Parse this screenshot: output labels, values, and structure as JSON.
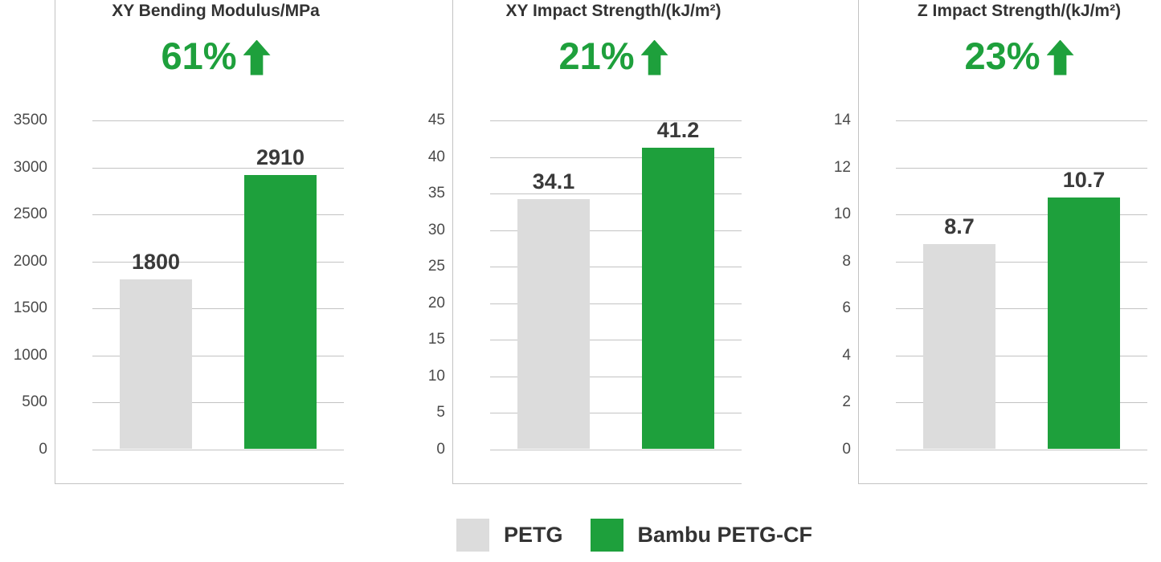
{
  "colors": {
    "green": "#1ea03c",
    "gray": "#dcdcdc",
    "grid": "#c3c3c3",
    "text_dark": "#333333"
  },
  "legend": {
    "position": "bottom-center",
    "items": [
      {
        "label": "PETG",
        "color": "#dcdcdc"
      },
      {
        "label": "Bambu PETG-CF",
        "color": "#1ea03c"
      }
    ]
  },
  "chart_data": [
    {
      "type": "bar",
      "title": "XY Bending Modulus/MPa",
      "improvement_label": "61%",
      "improvement_direction": "up",
      "categories": [
        "PETG",
        "Bambu PETG-CF"
      ],
      "values": [
        1800,
        2910
      ],
      "value_labels": [
        "1800",
        "2910"
      ],
      "series_colors": [
        "#dcdcdc",
        "#1ea03c"
      ],
      "ylim": [
        0,
        3500
      ],
      "yticks": [
        0,
        500,
        1000,
        1500,
        2000,
        2500,
        3000,
        3500
      ],
      "grid": true
    },
    {
      "type": "bar",
      "title": "XY Impact Strength/(kJ/m²)",
      "improvement_label": "21%",
      "improvement_direction": "up",
      "categories": [
        "PETG",
        "Bambu PETG-CF"
      ],
      "values": [
        34.1,
        41.2
      ],
      "value_labels": [
        "34.1",
        "41.2"
      ],
      "series_colors": [
        "#dcdcdc",
        "#1ea03c"
      ],
      "ylim": [
        0,
        45
      ],
      "yticks": [
        0,
        5,
        10,
        15,
        20,
        25,
        30,
        35,
        40,
        45
      ],
      "grid": true
    },
    {
      "type": "bar",
      "title": "Z Impact Strength/(kJ/m²)",
      "improvement_label": "23%",
      "improvement_direction": "up",
      "categories": [
        "PETG",
        "Bambu PETG-CF"
      ],
      "values": [
        8.7,
        10.7
      ],
      "value_labels": [
        "8.7",
        "10.7"
      ],
      "series_colors": [
        "#dcdcdc",
        "#1ea03c"
      ],
      "ylim": [
        0,
        14
      ],
      "yticks": [
        0,
        2,
        4,
        6,
        8,
        10,
        12,
        14
      ],
      "grid": true
    }
  ]
}
